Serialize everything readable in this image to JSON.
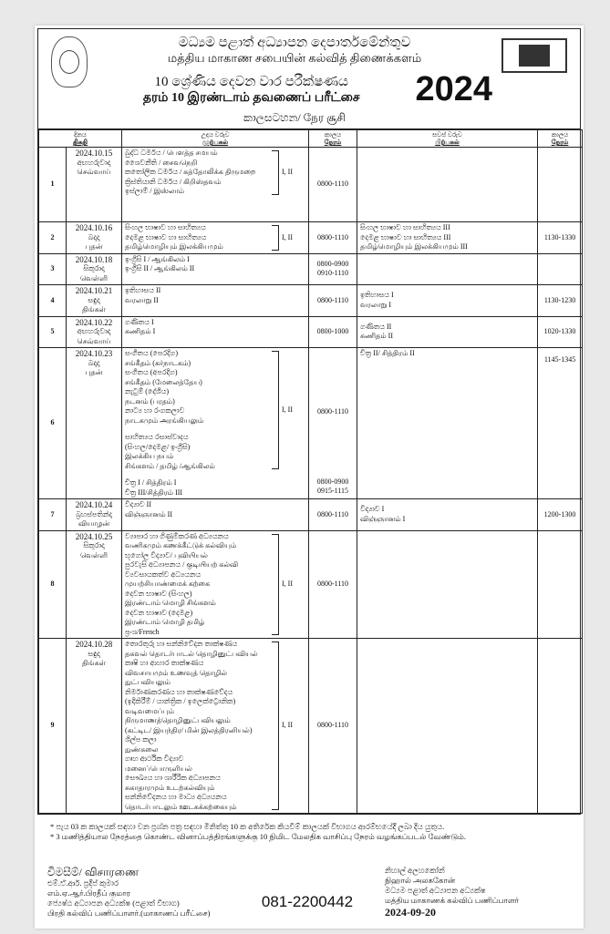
{
  "header": {
    "dept_si": "මධ්‍යම පළාත් අධ්‍යාපන දෙපාර්තමේන්තුව",
    "dept_ta": "மத்திய மாகாண சபையின் கல்வித் திணைக்களம்",
    "exam_si": "10 ශ්‍රේණිය දෙවන වාර පරීක්ෂණය",
    "exam_ta": "தரம் 10 இரண்டாம் தவணைப் பரீட்சை",
    "year": "2024",
    "subtitle": "කාලසටහන/ நேர சூசி"
  },
  "columns": {
    "day_si": "දිනය",
    "day_ta": "திகதி",
    "morning_si": "උදය වරුව",
    "morning_ta": "முற்பகல்",
    "time_si": "කාලය",
    "time_ta": "நேரம்",
    "afternoon_si": "සවස් වරුව",
    "afternoon_ta": "பிற்பகல்"
  },
  "rows": [
    {
      "no": "1",
      "date": "2024.10.15",
      "day_si": "අඟහරුවාදා",
      "day_ta": "செவ்வாய்",
      "morning": [
        "බුද්ධ ධර්මය / பௌத்த சமயம்",
        "ශෛවනීති / சைவநெறி",
        "කතෝලික ධර්මය / கத்தோலிக்க திருமறை",
        "ක්‍රිස්තියානි ධර්මය / கிறிஸ்தவம்",
        "ඉස්ලාම් / இஸ்லாம்"
      ],
      "morning_papers": "I, II",
      "morning_time": [
        "0800-1110"
      ],
      "afternoon": [],
      "afternoon_time": ""
    },
    {
      "no": "2",
      "date": "2024.10.16",
      "day_si": "බදාදා",
      "day_ta": "புதன்",
      "morning": [
        "සිංහල භාෂාව හා සාහිත්‍යය",
        "දෙමළ භාෂාව හා සාහිත්‍යය",
        "தமிழ்மொழியும் இலக்கியமும்"
      ],
      "morning_papers": "I, II",
      "morning_time": [
        "0800-1110"
      ],
      "afternoon": [
        "සිංහල භාෂාව හා සාහිත්‍යය  III",
        "දෙමළ භාෂාව හා සාහිත්‍යය  III",
        "தமிழ்மொழியும் இலக்கியமும் III"
      ],
      "afternoon_time": "1130-1330"
    },
    {
      "no": "3",
      "date": "2024.10.18",
      "day_si": "සිකුරාදා",
      "day_ta": "வெள்ளி",
      "morning": [
        "ඉංග්‍රීසි I / ஆங்கிலம்   I",
        "ඉංග්‍රීසි II / ஆங்கிலம்   II"
      ],
      "morning_papers": "",
      "morning_time": [
        "0800-0900",
        "0910-1110"
      ],
      "afternoon": [],
      "afternoon_time": ""
    },
    {
      "no": "4",
      "date": "2024.10.21",
      "day_si": "සඳුදා",
      "day_ta": "திங்கள்",
      "morning": [
        "ඉතිහාසය II",
        "வரலாறு   II"
      ],
      "morning_papers": "",
      "morning_time": [
        "0800-1110"
      ],
      "afternoon": [
        "ඉතිහාසය I",
        "வரலாறு I"
      ],
      "afternoon_time": "1130-1230"
    },
    {
      "no": "5",
      "date": "2024.10.22",
      "day_si": "අඟහරුවාදා",
      "day_ta": "செவ்வாய்",
      "morning": [
        "ගණිතය I",
        "கணிதம் I"
      ],
      "morning_papers": "",
      "morning_time": [
        "0800-1000"
      ],
      "afternoon": [
        "ගණිතය II",
        "கணிதம் II"
      ],
      "afternoon_time": "1020-1330"
    },
    {
      "no": "6",
      "date": "2024.10.23",
      "day_si": "බදාදා",
      "day_ta": "புதன்",
      "morning": [
        "සංගීතය (පෙරදිග)",
        "சங்கீதம்  (கர்நாடகம்)",
        "සංගීතය (අපරදිග)",
        "சங்கீதம்  (மேலைத்தேய)",
        "නැටුම් (දේශීය)",
        "நடனம்  (பரதம்)",
        "නාට්‍ය හා රංගකලාව",
        "நாடகமும்  அரங்கியலும்",
        "",
        "සාහිත්‍යය රසාස්වාදය",
        "(සිංහල/දෙමළ/ ඉංග්‍රීසි)",
        "இலக்கிய நயம்",
        "சிங்களம்  /  தமிழ்  /ஆங்கிலம்",
        "",
        "චිත්‍ර I / சித்திரம்  I",
        "චිත්‍ර III/சித்திரம்  III"
      ],
      "morning_papers": "I, II",
      "morning_time": [
        "0800-1110",
        "0800-0900",
        "0915-1115"
      ],
      "afternoon": [
        "චිත්‍ර  II/ சித்திரம்   II"
      ],
      "afternoon_time": "1145-1345"
    },
    {
      "no": "7",
      "date": "2024.10.24",
      "day_si": "බ්‍රහස්පතින්දා",
      "day_ta": "வியாழன்",
      "morning": [
        "විද්‍යාව II",
        "விஞ்ஞானம் II"
      ],
      "morning_papers": "",
      "morning_time": [
        "0800-1110"
      ],
      "afternoon": [
        "විද්‍යාව I",
        "விஞ்ஞானம் I"
      ],
      "afternoon_time": "1200-1300"
    },
    {
      "no": "8",
      "date": "2024.10.25",
      "day_si": "සිකුරාදා",
      "day_ta": "வெள்ளி",
      "morning": [
        "ව්‍යාපාර හා ගිණුම්කරණ අධ්‍යයනය",
        "வணிகமும் கணக்கீட்டுக் கல்வியும்",
        "භූගෝල විද්‍යාව/ புவியியல்",
        "පුරවැසි අධ්‍යාපනය / குடியியற் கல்வி",
        "ව්‍යවසායකත්ව අධ්‍යයනය",
        "முயற்சியாண்மைக் கற்கை",
        "දෙවන භාෂාව (සිංහල)",
        "இரண்டாம் மொழி சிங்களம்",
        "දෙවන භාෂාව  (දෙමළ)",
        "இரண்டாம் மொழி தமிழ்",
        "ප්‍රංශ/French"
      ],
      "morning_papers": "I, II",
      "morning_time": [
        "0800-1110"
      ],
      "afternoon": [],
      "afternoon_time": ""
    },
    {
      "no": "9",
      "date": "2024.10.28",
      "day_si": "සඳුදා",
      "day_ta": "திங்கள்",
      "morning": [
        "තොරතුරු හා සන්නිවේදන තාක්ෂණය",
        "தகவல் தொடர்பாடல் தொழினுட்பவியல்",
        "කෘෂි හා ආහාර තාක්ෂණය",
        "விவசாயமும் உணவுத் தொழில் நுட்பவியலும்",
        "නිර්මාණකරණය හා තාක්ෂණවේදය",
        "(ඉදිකිරීම් / යාන්ත්‍රික / ඉලෙක්ට්‍රොනික)",
        "வடிவமைப்பும் நிருமாணத்தொழினுட்பவியலும்",
        "(கட்டிட/ இயந்திர/  மின் இலத்திரனியல்)",
        "ශිල්ප කලා",
        "நுண்கலை",
        "ගෘහ ආර්ථික විද්‍යාව",
        "மனைப்பொருளியல்",
        "සෞඛ්‍යය හා ශාරීරික අධ්‍යාපනය",
        "சுகாதாரமும்  உடற்கல்வியும்",
        "සන්නිවේදනය හා මාධ්‍ය අධ්‍යයනය",
        "தொடர்பாடலும்  ஊடகக்கற்கையும்"
      ],
      "morning_papers": "I, II",
      "morning_time": [
        "0800-1110"
      ],
      "afternoon": [],
      "afternoon_time": ""
    }
  ],
  "notes": [
    "* පැය 03 ක කාලයක් සඳහා වන ප්‍රශ්න පත්‍ර සඳහා මිනිත්තු 10 ක අතිරේක කියවීම් කාලයක් විභාගය ආරම්භයේදී ලබා දිය යුතුය.",
    "* 3 மணித்தியால நேரத்தை கொண்ட வினாப்பத்திரங்களுக்கு 10 நிமிட மேலதிக வாசிப்பு நேரம் வழங்கப்படல் வேண்டும்."
  ],
  "footer": {
    "inquiries": "විමසීම්/ விசாரணை",
    "contact_lines": [
      "එම්.ඒ.ආර්. ප්‍රදීප් කුමාර",
      "எம்.ஏ.ஆர்.பிரதீப் குமார",
      "ජ්‍යෙෂ්ඨ අධ්‍යාපන අධ්‍යක්ෂ (පළාත් විභාග)",
      "பிரதி கல்விப் பணிப்பாளர்.(மாகாணப் பரீட்சை)"
    ],
    "phone": "081-2200442",
    "signatory_lines": [
      "නිහාල් අලහකෝන්",
      "நிஹால் அலககோன்",
      "මධ්‍යම පළාත් අධ්‍යාපන අධ්‍යක්ෂ",
      "மத்திய மாகாணக் கல்விப் பணிப்பாளர்"
    ],
    "date": "2024-09-20"
  }
}
